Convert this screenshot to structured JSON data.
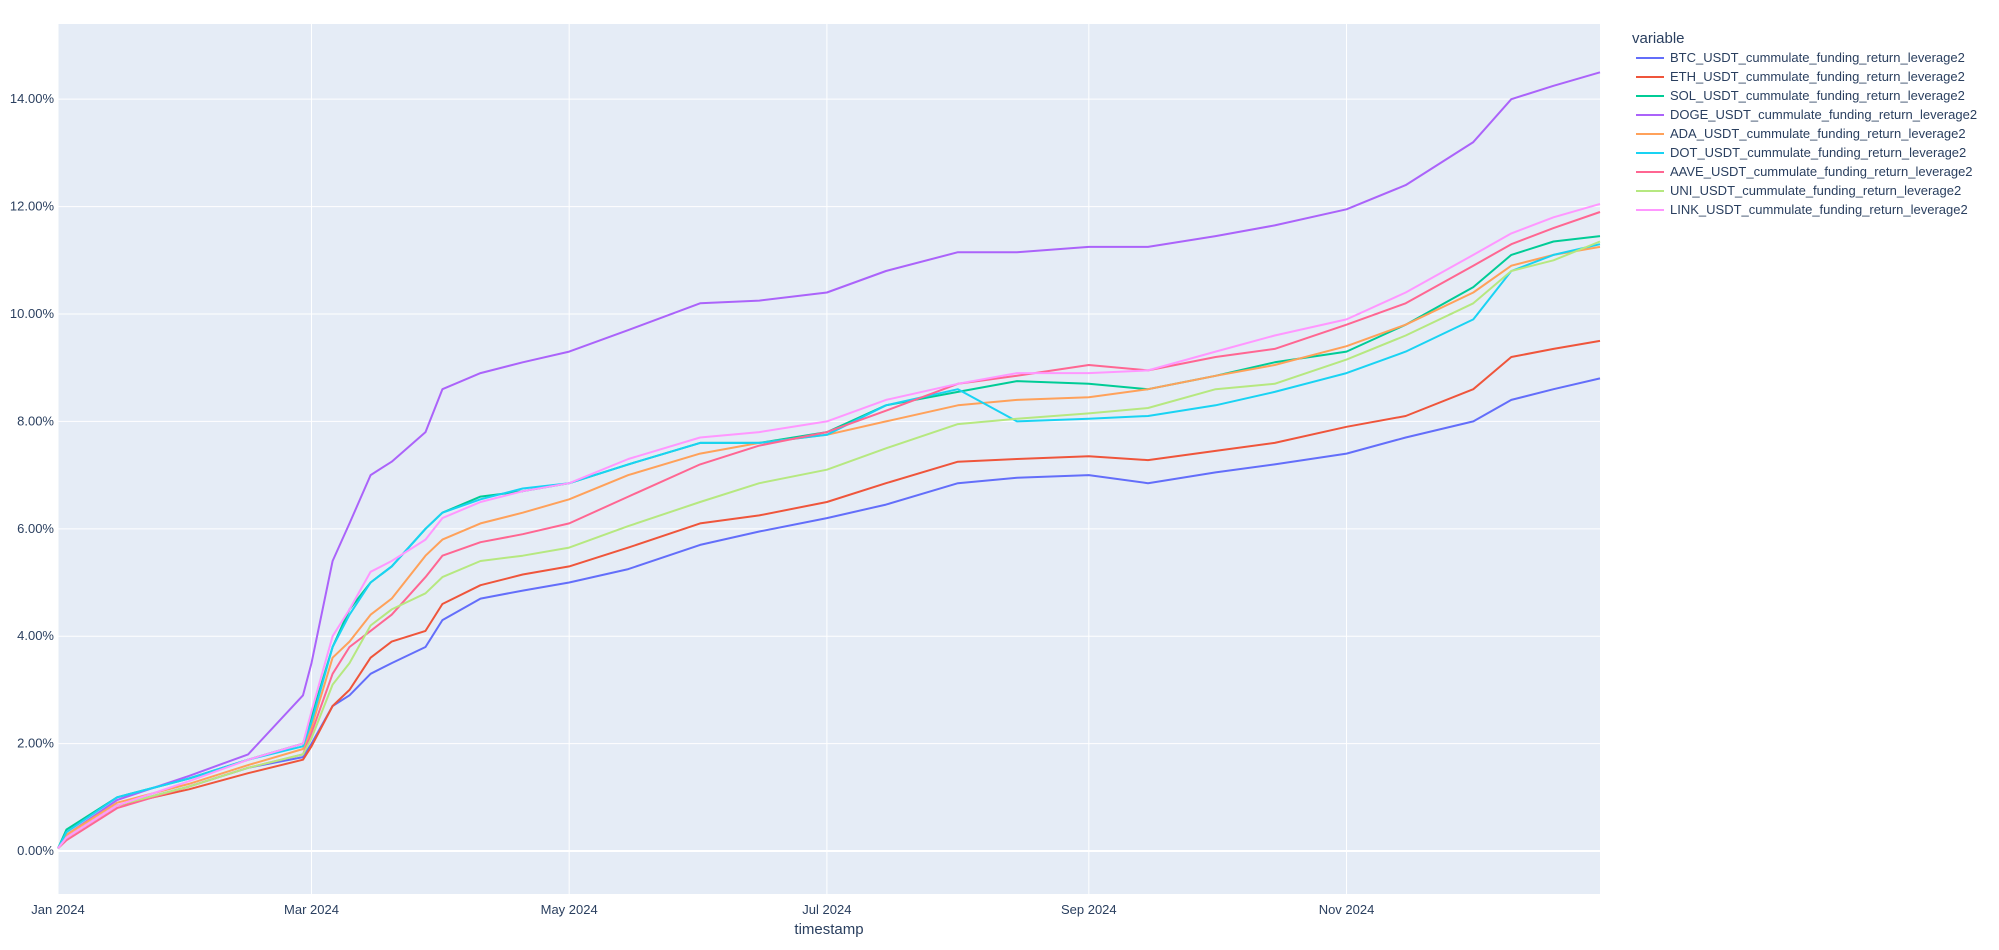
{
  "chart_data": {
    "type": "line",
    "xlabel": "timestamp",
    "ylabel": "",
    "x_range": [
      "2024-01-01",
      "2024-12-31"
    ],
    "ylim": [
      -0.8,
      15.4
    ],
    "y_ticks": [
      0,
      2,
      4,
      6,
      8,
      10,
      12,
      14
    ],
    "y_tick_labels": [
      "0.00%",
      "2.00%",
      "4.00%",
      "6.00%",
      "8.00%",
      "10.00%",
      "12.00%",
      "14.00%"
    ],
    "x_ticks": [
      "2024-01-01",
      "2024-03-01",
      "2024-05-01",
      "2024-07-01",
      "2024-09-01",
      "2024-11-01"
    ],
    "x_tick_labels": [
      "Jan 2024",
      "Mar 2024",
      "May 2024",
      "Jul 2024",
      "Sep 2024",
      "Nov 2024"
    ],
    "grid": true,
    "plot_bg": "#e5ecf6",
    "legend": {
      "title": "variable",
      "position": "right"
    },
    "x_dates": [
      "2024-01-01",
      "2024-01-03",
      "2024-01-15",
      "2024-02-01",
      "2024-02-15",
      "2024-02-28",
      "2024-03-01",
      "2024-03-06",
      "2024-03-10",
      "2024-03-15",
      "2024-03-20",
      "2024-03-28",
      "2024-04-01",
      "2024-04-10",
      "2024-04-20",
      "2024-05-01",
      "2024-05-15",
      "2024-06-01",
      "2024-06-15",
      "2024-07-01",
      "2024-07-15",
      "2024-08-01",
      "2024-08-15",
      "2024-09-01",
      "2024-09-15",
      "2024-10-01",
      "2024-10-15",
      "2024-11-01",
      "2024-11-15",
      "2024-12-01",
      "2024-12-10",
      "2024-12-20",
      "2024-12-31"
    ],
    "series": [
      {
        "name": "BTC_USDT_cummulate_funding_return_leverage2",
        "color": "#636efa",
        "values": [
          0.05,
          0.25,
          0.85,
          1.2,
          1.55,
          1.75,
          2.0,
          2.7,
          2.9,
          3.3,
          3.5,
          3.8,
          4.3,
          4.7,
          4.85,
          5.0,
          5.25,
          5.7,
          5.95,
          6.2,
          6.45,
          6.85,
          6.95,
          7.0,
          6.85,
          7.05,
          7.2,
          7.4,
          7.7,
          8.0,
          8.4,
          8.6,
          8.8
        ]
      },
      {
        "name": "ETH_USDT_cummulate_funding_return_leverage2",
        "color": "#ef553b",
        "values": [
          0.05,
          0.25,
          0.85,
          1.15,
          1.45,
          1.7,
          1.95,
          2.7,
          3.0,
          3.6,
          3.9,
          4.1,
          4.6,
          4.95,
          5.15,
          5.3,
          5.65,
          6.1,
          6.25,
          6.5,
          6.85,
          7.25,
          7.3,
          7.35,
          7.28,
          7.45,
          7.6,
          7.9,
          8.1,
          8.6,
          9.2,
          9.35,
          9.5
        ]
      },
      {
        "name": "SOL_USDT_cummulate_funding_return_leverage2",
        "color": "#00cc96",
        "values": [
          0.05,
          0.4,
          1.0,
          1.35,
          1.7,
          2.0,
          2.5,
          3.8,
          4.5,
          5.0,
          5.3,
          6.0,
          6.3,
          6.6,
          6.7,
          6.85,
          7.2,
          7.6,
          7.6,
          7.8,
          8.3,
          8.55,
          8.75,
          8.7,
          8.6,
          8.85,
          9.1,
          9.3,
          9.8,
          10.5,
          11.1,
          11.35,
          11.45
        ]
      },
      {
        "name": "DOGE_USDT_cummulate_funding_return_leverage2",
        "color": "#ab63fa",
        "values": [
          0.05,
          0.3,
          0.95,
          1.4,
          1.8,
          2.9,
          3.5,
          5.4,
          6.1,
          7.0,
          7.25,
          7.8,
          8.6,
          8.9,
          9.1,
          9.3,
          9.7,
          10.2,
          10.25,
          10.4,
          10.8,
          11.15,
          11.15,
          11.25,
          11.25,
          11.45,
          11.65,
          11.95,
          12.4,
          13.2,
          14.0,
          14.25,
          14.5
        ]
      },
      {
        "name": "ADA_USDT_cummulate_funding_return_leverage2",
        "color": "#ffa15a",
        "values": [
          0.05,
          0.3,
          0.9,
          1.25,
          1.6,
          1.9,
          2.3,
          3.6,
          3.9,
          4.4,
          4.7,
          5.5,
          5.8,
          6.1,
          6.3,
          6.55,
          7.0,
          7.4,
          7.6,
          7.75,
          8.0,
          8.3,
          8.4,
          8.45,
          8.6,
          8.85,
          9.05,
          9.4,
          9.8,
          10.4,
          10.9,
          11.1,
          11.25
        ]
      },
      {
        "name": "DOT_USDT_cummulate_funding_return_leverage2",
        "color": "#19d3f3",
        "values": [
          0.05,
          0.35,
          1.0,
          1.35,
          1.7,
          1.95,
          2.4,
          3.8,
          4.4,
          5.0,
          5.3,
          6.0,
          6.3,
          6.55,
          6.75,
          6.85,
          7.2,
          7.6,
          7.6,
          7.75,
          8.3,
          8.6,
          8.0,
          8.05,
          8.1,
          8.3,
          8.55,
          8.9,
          9.3,
          9.9,
          10.8,
          11.1,
          11.3
        ]
      },
      {
        "name": "AAVE_USDT_cummulate_funding_return_leverage2",
        "color": "#ff6692",
        "values": [
          0.05,
          0.2,
          0.8,
          1.2,
          1.55,
          1.8,
          2.2,
          3.3,
          3.8,
          4.1,
          4.4,
          5.1,
          5.5,
          5.75,
          5.9,
          6.1,
          6.6,
          7.2,
          7.55,
          7.8,
          8.2,
          8.7,
          8.85,
          9.05,
          8.95,
          9.2,
          9.35,
          9.8,
          10.2,
          10.9,
          11.3,
          11.6,
          11.9
        ]
      },
      {
        "name": "UNI_USDT_cummulate_funding_return_leverage2",
        "color": "#b6e880",
        "values": [
          0.05,
          0.25,
          0.85,
          1.2,
          1.55,
          1.8,
          2.1,
          3.1,
          3.5,
          4.2,
          4.5,
          4.8,
          5.1,
          5.4,
          5.5,
          5.65,
          6.05,
          6.5,
          6.85,
          7.1,
          7.5,
          7.95,
          8.05,
          8.15,
          8.25,
          8.6,
          8.7,
          9.15,
          9.6,
          10.2,
          10.8,
          11.0,
          11.35
        ]
      },
      {
        "name": "LINK_USDT_cummulate_funding_return_leverage2",
        "color": "#ff97ff",
        "values": [
          0.05,
          0.25,
          0.85,
          1.3,
          1.7,
          2.0,
          2.6,
          4.0,
          4.5,
          5.2,
          5.4,
          5.8,
          6.2,
          6.5,
          6.7,
          6.85,
          7.3,
          7.7,
          7.8,
          8.0,
          8.4,
          8.7,
          8.9,
          8.9,
          8.95,
          9.3,
          9.6,
          9.9,
          10.4,
          11.1,
          11.5,
          11.8,
          12.05
        ]
      }
    ]
  }
}
